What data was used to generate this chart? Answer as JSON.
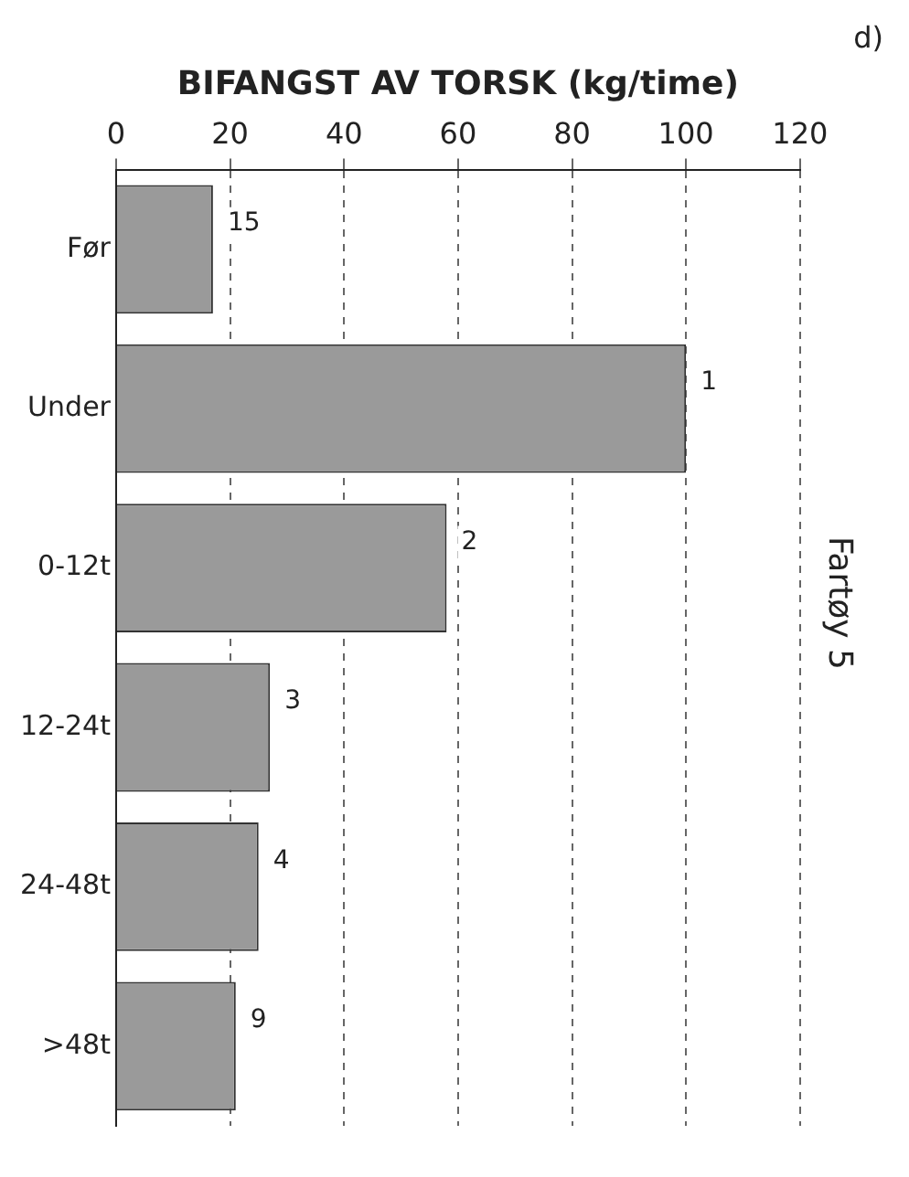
{
  "chart_data": {
    "type": "bar",
    "orientation": "horizontal",
    "title": "Fartøy 5",
    "xlabel": "BIFANGST AV TORSK (kg/time)",
    "annotations": [
      "d)",
      {
        "text": "15",
        "x": 17,
        "y": "Før"
      },
      {
        "text": "1",
        "x": 100,
        "y": "Under"
      },
      {
        "text": "2",
        "x": 58,
        "y": "0-12t"
      },
      {
        "text": "3",
        "x": 27,
        "y": "12-24t"
      },
      {
        "text": "4",
        "x": 25,
        "y": "24-48t"
      },
      {
        "text": "9",
        "x": 21,
        "y": ">48t"
      }
    ],
    "categories": [
      "Før",
      "Under",
      "0-12t",
      "12-24t",
      "24-48t",
      ">48t"
    ],
    "values": [
      17,
      100,
      58,
      27,
      25,
      21
    ],
    "color": "#9a9a9a",
    "xlim": [
      0,
      120
    ],
    "xticks": [
      0,
      20,
      40,
      60,
      80,
      100,
      120
    ],
    "grid": "x"
  }
}
